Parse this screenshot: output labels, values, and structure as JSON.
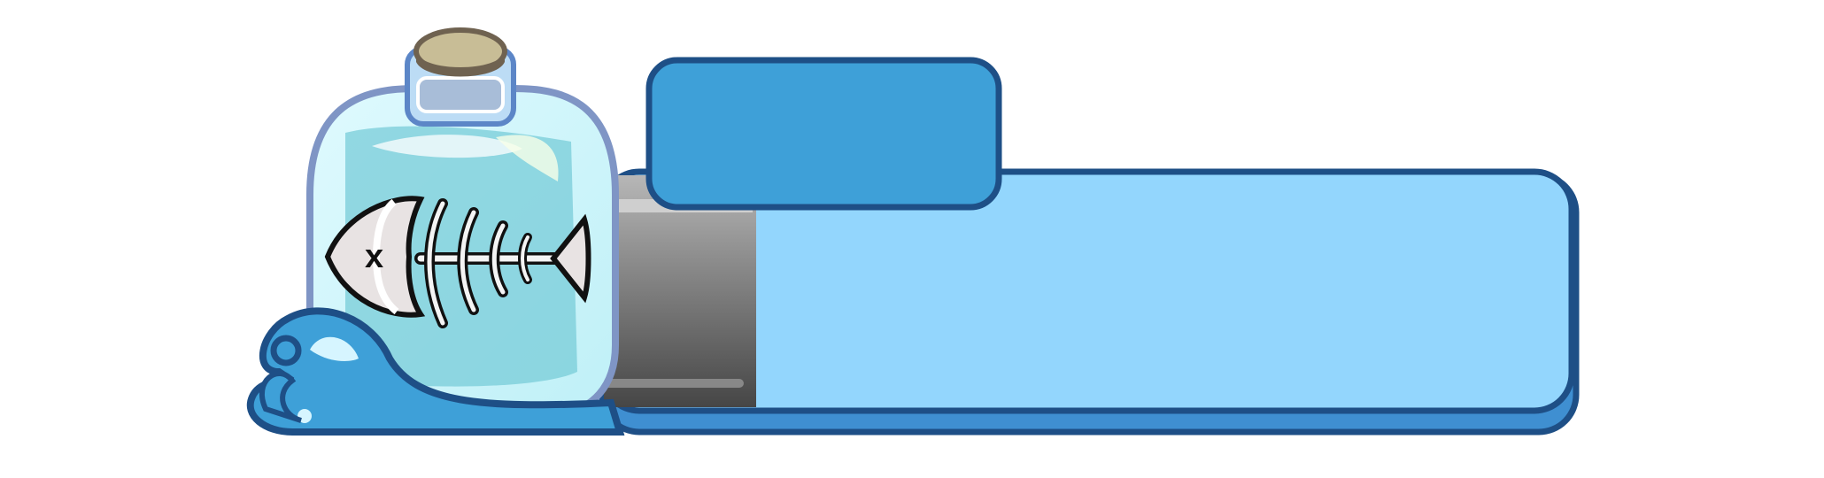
{
  "game_banner": {
    "title": "",
    "message": "",
    "colors": {
      "outline": "#1e4f86",
      "tab_fill": "#3ea0d8",
      "panel_fill": "#93d6fd",
      "panel_shadow": "#3f8fd1",
      "glass": "#d8f7fb",
      "water": "#78ccd8",
      "cork": "#c8bd96",
      "bone": "#f2f2f2"
    },
    "icons": {
      "bottle": "bottle-icon",
      "fish": "fish-skeleton-icon",
      "splash": "water-splash-icon",
      "cork": "cork-icon"
    }
  }
}
